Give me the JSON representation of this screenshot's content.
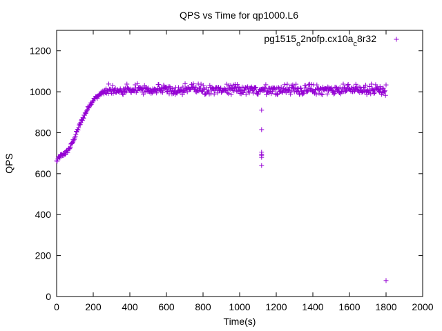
{
  "chart_data": {
    "type": "scatter",
    "title": "QPS vs Time for qp1000.L6",
    "xlabel": "Time(s)",
    "ylabel": "QPS",
    "xlim": [
      0,
      2000
    ],
    "ylim": [
      0,
      1300
    ],
    "xticks": [
      0,
      200,
      400,
      600,
      800,
      1000,
      1200,
      1400,
      1600,
      1800,
      2000
    ],
    "yticks": [
      0,
      200,
      400,
      600,
      800,
      1000,
      1200
    ],
    "grid": false,
    "legend_position": "top-right",
    "marker": "+",
    "series": [
      {
        "name": "pg1515_o2nofp.cx10a_c8r32",
        "legend_parts": {
          "a": "pg1515",
          "b": "o",
          "c": "2nofp.cx10a",
          "d": "c",
          "e": "8r32"
        },
        "color": "#9400d3",
        "profile_points": [
          [
            0,
            660
          ],
          [
            10,
            675
          ],
          [
            20,
            685
          ],
          [
            40,
            695
          ],
          [
            60,
            710
          ],
          [
            80,
            740
          ],
          [
            100,
            780
          ],
          [
            120,
            825
          ],
          [
            140,
            865
          ],
          [
            160,
            900
          ],
          [
            180,
            935
          ],
          [
            200,
            960
          ],
          [
            220,
            975
          ],
          [
            240,
            990
          ],
          [
            260,
            1000
          ],
          [
            300,
            1005
          ],
          [
            400,
            1008
          ],
          [
            600,
            1012
          ],
          [
            1800,
            1012
          ]
        ],
        "steady_state_range": [
          985,
          1040
        ],
        "outliers": [
          [
            1120,
            910
          ],
          [
            1120,
            815
          ],
          [
            1120,
            705
          ],
          [
            1120,
            695
          ],
          [
            1120,
            690
          ],
          [
            1120,
            680
          ],
          [
            1120,
            640
          ],
          [
            1800,
            78
          ]
        ]
      }
    ]
  }
}
